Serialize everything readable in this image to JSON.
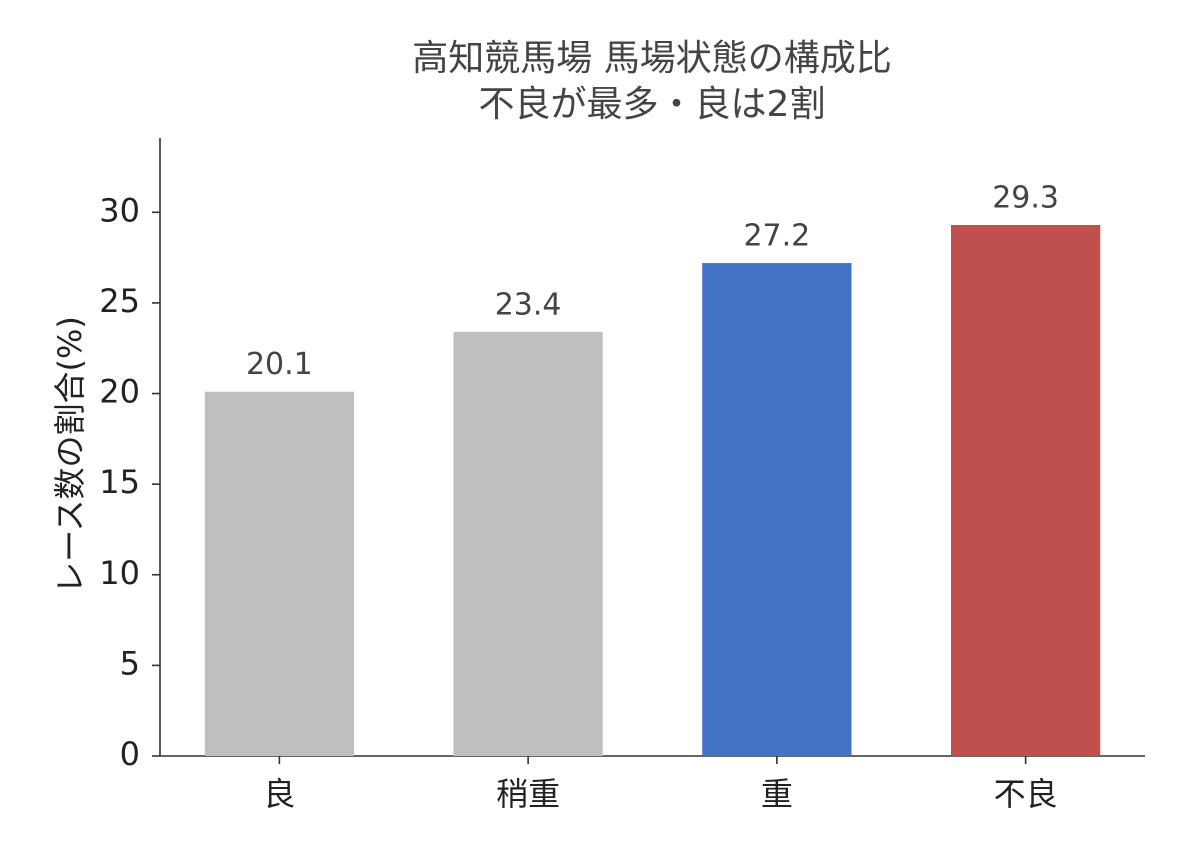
{
  "chart_data": {
    "type": "bar",
    "title": "高知競馬場 馬場状態の構成比",
    "subtitle": "不良が最多・良は2割",
    "y_label": "レース数の割合(%)",
    "categories": [
      "良",
      "稍重",
      "重",
      "不良"
    ],
    "values": [
      20.1,
      23.4,
      27.2,
      29.3
    ],
    "colors": [
      "#bfbfbf",
      "#bfbfbf",
      "#4472c4",
      "#c0504d"
    ],
    "ylim": [
      0,
      34.1
    ],
    "yticks": [
      0,
      5,
      10,
      15,
      20,
      25,
      30
    ],
    "grid": false
  }
}
